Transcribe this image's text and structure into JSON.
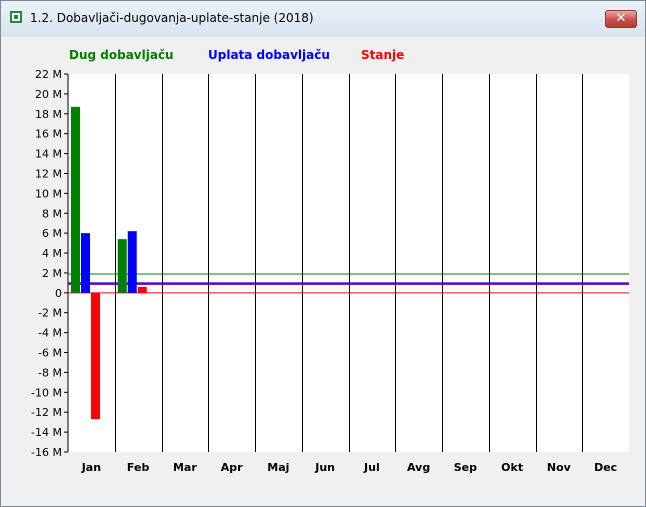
{
  "window": {
    "title": "1.2. Dobavljači-dugovanja-uplate-stanje (2018)",
    "close_glyph": "✕"
  },
  "icons": {
    "app": "app-icon",
    "close": "close-icon"
  },
  "colors": {
    "dug": "#008000",
    "uplata": "#0000ff",
    "stanje": "#ff0000",
    "avg_line": "#800080"
  },
  "chart_data": {
    "type": "bar",
    "categories": [
      "Jan",
      "Feb",
      "Mar",
      "Apr",
      "Maj",
      "Jun",
      "Jul",
      "Avg",
      "Sep",
      "Okt",
      "Nov",
      "Dec"
    ],
    "series": [
      {
        "name": "Dug dobavljaču",
        "values": [
          18.7,
          5.4,
          null,
          null,
          null,
          null,
          null,
          null,
          null,
          null,
          null,
          null
        ]
      },
      {
        "name": "Uplata dobavljaču",
        "values": [
          6.0,
          6.2,
          null,
          null,
          null,
          null,
          null,
          null,
          null,
          null,
          null,
          null
        ]
      },
      {
        "name": "Stanje",
        "values": [
          -12.7,
          0.6,
          null,
          null,
          null,
          null,
          null,
          null,
          null,
          null,
          null,
          null
        ]
      }
    ],
    "reference_lines": [
      {
        "series": "Dug dobavljaču",
        "value": 1.9
      },
      {
        "series": "Uplata dobavljaču",
        "value": 1.0
      },
      {
        "series": "Stanje",
        "value": 0.0
      }
    ],
    "ylim": [
      -16,
      22
    ],
    "yticks": [
      22,
      20,
      18,
      16,
      14,
      12,
      10,
      8,
      6,
      4,
      2,
      0,
      -2,
      -4,
      -6,
      -8,
      -10,
      -12,
      -14,
      -16
    ],
    "ytick_labels": [
      "22 M",
      "20 M",
      "18 M",
      "16 M",
      "14 M",
      "12 M",
      "10 M",
      "8 M",
      "6 M",
      "4 M",
      "2 M",
      "0",
      "-2 M",
      "-4 M",
      "-6 M",
      "-8 M",
      "-10 M",
      "-12 M",
      "-14 M",
      "-16 M"
    ],
    "legend_placement": "top",
    "grid": "vertical lines between months"
  }
}
